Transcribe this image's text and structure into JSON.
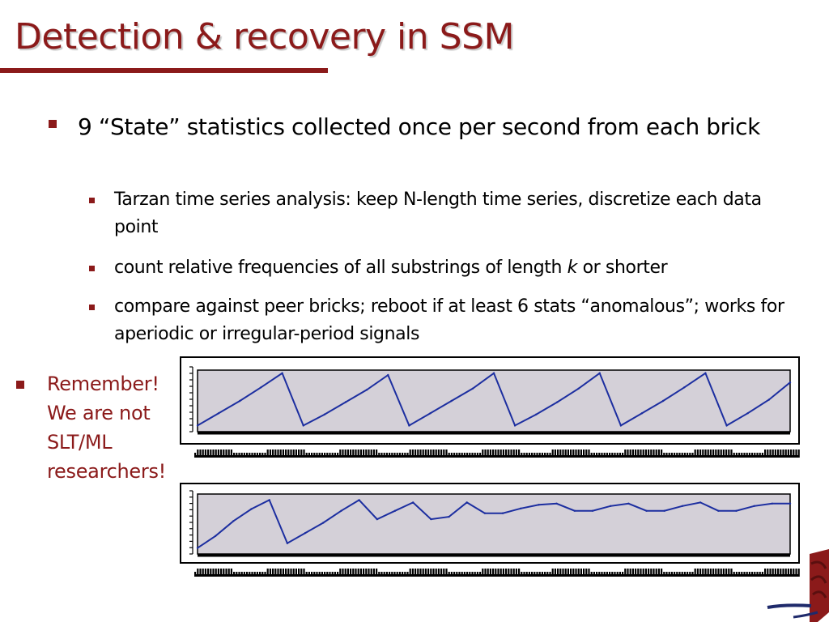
{
  "slide": {
    "title": "Detection & recovery in SSM",
    "bullets": [
      {
        "text": "9 “State” statistics collected once per second from each brick"
      }
    ],
    "sub_bullets": [
      {
        "text": "Tarzan time series analysis: keep N-length time series, discretize each data point"
      },
      {
        "before": "count relative frequencies of all substrings of length ",
        "emph": "k",
        "after": " or shorter"
      },
      {
        "text": "compare against peer bricks; reboot if at least 6 stats “anomalous”; works for aperiodic or irregular-period signals"
      }
    ],
    "callout": "Remember! We are not SLT/ML researchers!"
  },
  "colors": {
    "accent": "#8b1a1a",
    "plot_bg": "#d4d0d8",
    "series": "#1c2ea0"
  },
  "chart_data": [
    {
      "type": "line",
      "series": [
        {
          "values": [
            0.1,
            0.3,
            0.5,
            0.72,
            0.95,
            0.1,
            0.28,
            0.48,
            0.68,
            0.92,
            0.1,
            0.3,
            0.5,
            0.7,
            0.95,
            0.1,
            0.28,
            0.48,
            0.7,
            0.95,
            0.1,
            0.3,
            0.5,
            0.72,
            0.95,
            0.1,
            0.3,
            0.52,
            0.8
          ]
        }
      ]
    },
    {
      "type": "line",
      "series": [
        {
          "values": [
            0.1,
            0.3,
            0.55,
            0.75,
            0.9,
            0.18,
            0.35,
            0.52,
            0.72,
            0.9,
            0.58,
            0.72,
            0.86,
            0.58,
            0.62,
            0.86,
            0.68,
            0.68,
            0.76,
            0.82,
            0.84,
            0.72,
            0.72,
            0.8,
            0.84,
            0.72,
            0.72,
            0.8,
            0.86,
            0.72,
            0.72,
            0.8,
            0.84,
            0.84
          ]
        }
      ]
    }
  ]
}
